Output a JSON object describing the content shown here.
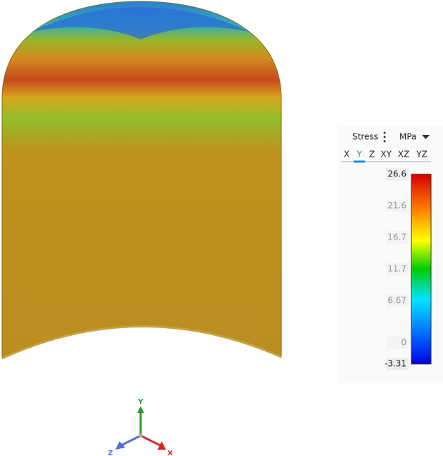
{
  "legend": {
    "quantity": "Stress",
    "unit": "MPa",
    "components": [
      "X",
      "Y",
      "Z",
      "XY",
      "XZ",
      "YZ"
    ],
    "active_component": 1,
    "labels": [
      "26.6",
      "21.6",
      "16.7",
      "11.7",
      "6.67",
      "0",
      "-3.31"
    ]
  },
  "triad": {
    "y": "Y",
    "z": "Z",
    "x": "X"
  }
}
